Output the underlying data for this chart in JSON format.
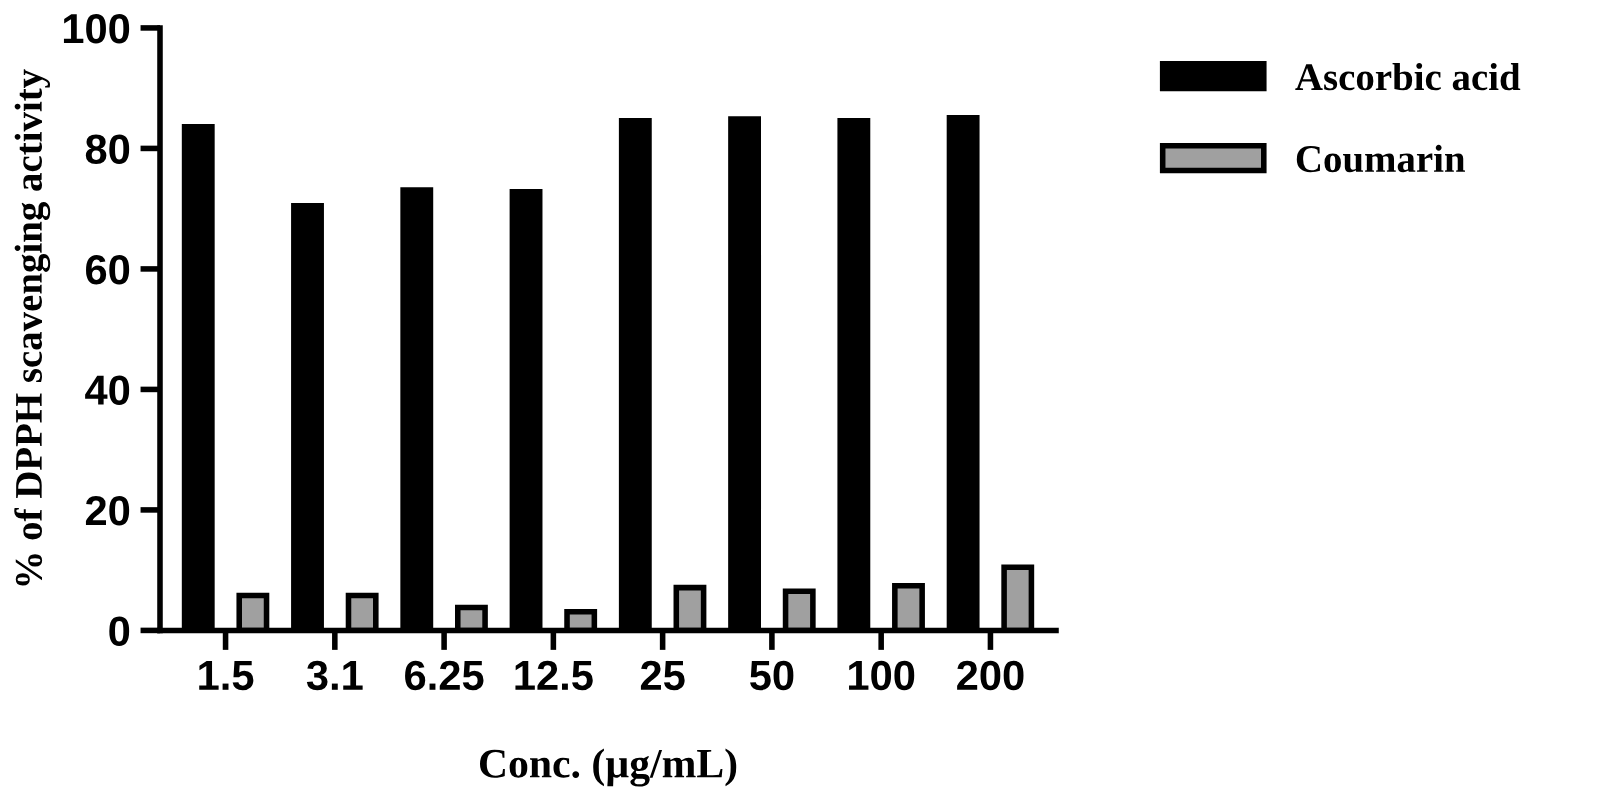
{
  "chart_data": {
    "type": "bar",
    "xlabel": "Conc. (µg/mL)",
    "ylabel": "% of DPPH scavenging activity",
    "categories": [
      "1.5",
      "3.1",
      "6.25",
      "12.5",
      "25",
      "50",
      "100",
      "200"
    ],
    "series": [
      {
        "name": "Ascorbic acid",
        "color": "#000000",
        "values": [
          83.6,
          70.5,
          73.1,
          72.8,
          84.6,
          84.9,
          84.6,
          85.1
        ]
      },
      {
        "name": "Coumarin",
        "color": "#a0a0a0",
        "values": [
          5.8,
          5.8,
          3.8,
          3.1,
          7.1,
          6.5,
          7.4,
          10.5
        ]
      }
    ],
    "ylim": [
      0,
      100
    ],
    "yticks": [
      0,
      20,
      40,
      60,
      80,
      100
    ],
    "legend": "top right",
    "grid": false
  }
}
